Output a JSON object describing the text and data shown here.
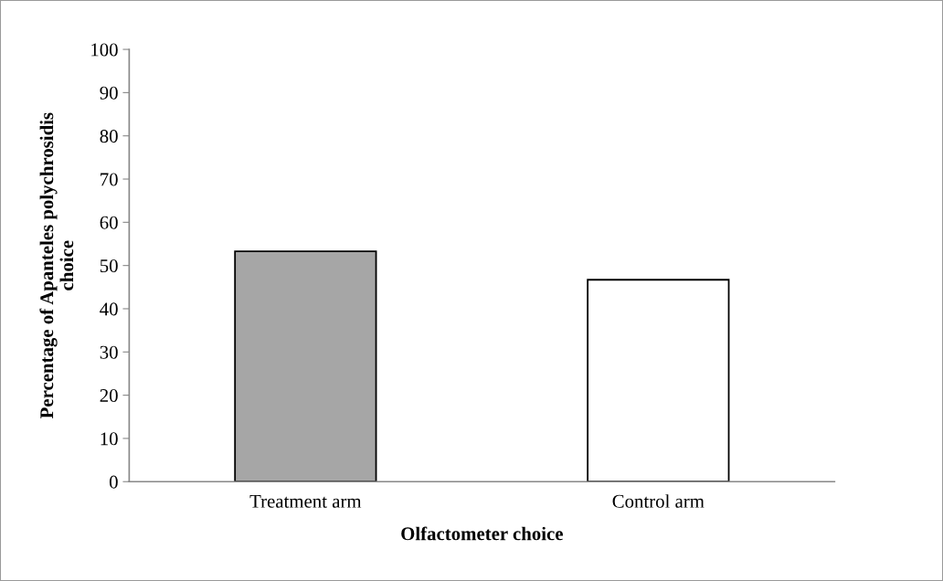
{
  "chart_data": {
    "type": "bar",
    "xlabel": "Olfactometer choice",
    "ylabel": "Percentage of Apanteles polychrosidis\nchoice",
    "categories": [
      "Treatment arm",
      "Control arm"
    ],
    "values": [
      53.3,
      46.7
    ],
    "colors": [
      "#a6a6a6",
      "#ffffff"
    ],
    "ylim": [
      0,
      100
    ],
    "yticks": [
      0,
      10,
      20,
      30,
      40,
      50,
      60,
      70,
      80,
      90,
      100
    ]
  }
}
